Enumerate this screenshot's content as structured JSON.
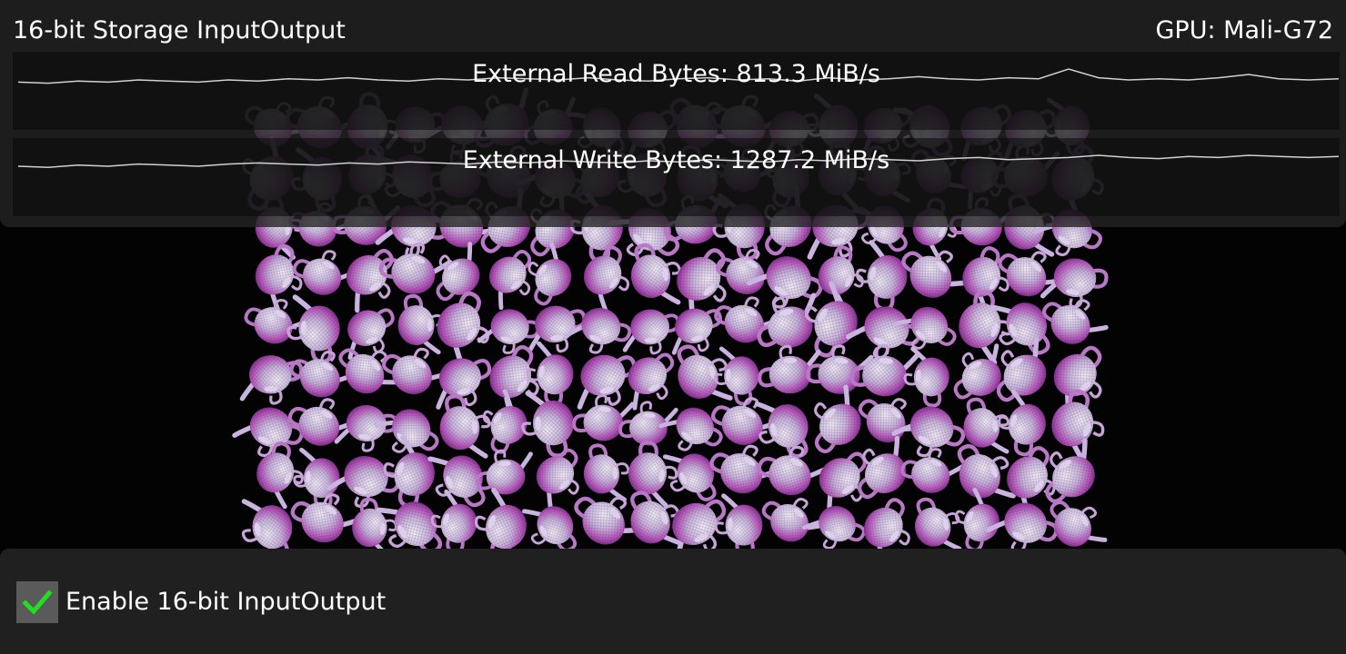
{
  "header": {
    "title": "16-bit Storage InputOutput",
    "gpu": "GPU: Mali-G72"
  },
  "stats": [
    {
      "label": "External Read Bytes: 813.3 MiB/s",
      "history": [
        0.48,
        0.47,
        0.49,
        0.48,
        0.5,
        0.49,
        0.48,
        0.5,
        0.49,
        0.51,
        0.5,
        0.52,
        0.5,
        0.49,
        0.51,
        0.5,
        0.52,
        0.51,
        0.5,
        0.52,
        0.5,
        0.49,
        0.51,
        0.52,
        0.5,
        0.51,
        0.49,
        0.52,
        0.5,
        0.51,
        0.53,
        0.51,
        0.5,
        0.52,
        0.51,
        0.6,
        0.52,
        0.5,
        0.51,
        0.5,
        0.52,
        0.55,
        0.51,
        0.5,
        0.51
      ]
    },
    {
      "label": "External Write Bytes: 1287.2 MiB/s",
      "history": [
        0.5,
        0.49,
        0.51,
        0.5,
        0.52,
        0.51,
        0.5,
        0.52,
        0.53,
        0.52,
        0.51,
        0.53,
        0.52,
        0.54,
        0.53,
        0.52,
        0.54,
        0.53,
        0.55,
        0.54,
        0.53,
        0.55,
        0.54,
        0.56,
        0.55,
        0.54,
        0.56,
        0.55,
        0.57,
        0.56,
        0.55,
        0.57,
        0.58,
        0.56,
        0.57,
        0.58,
        0.6,
        0.58,
        0.57,
        0.59,
        0.58,
        0.6,
        0.59,
        0.58,
        0.59
      ]
    }
  ],
  "controls": {
    "enable_label": "Enable 16-bit InputOutput",
    "enable_checked": true,
    "check_color": "#22dd22"
  },
  "scene": {
    "background": "#030303",
    "object": "teapot",
    "rows": 9,
    "columns": 18
  }
}
